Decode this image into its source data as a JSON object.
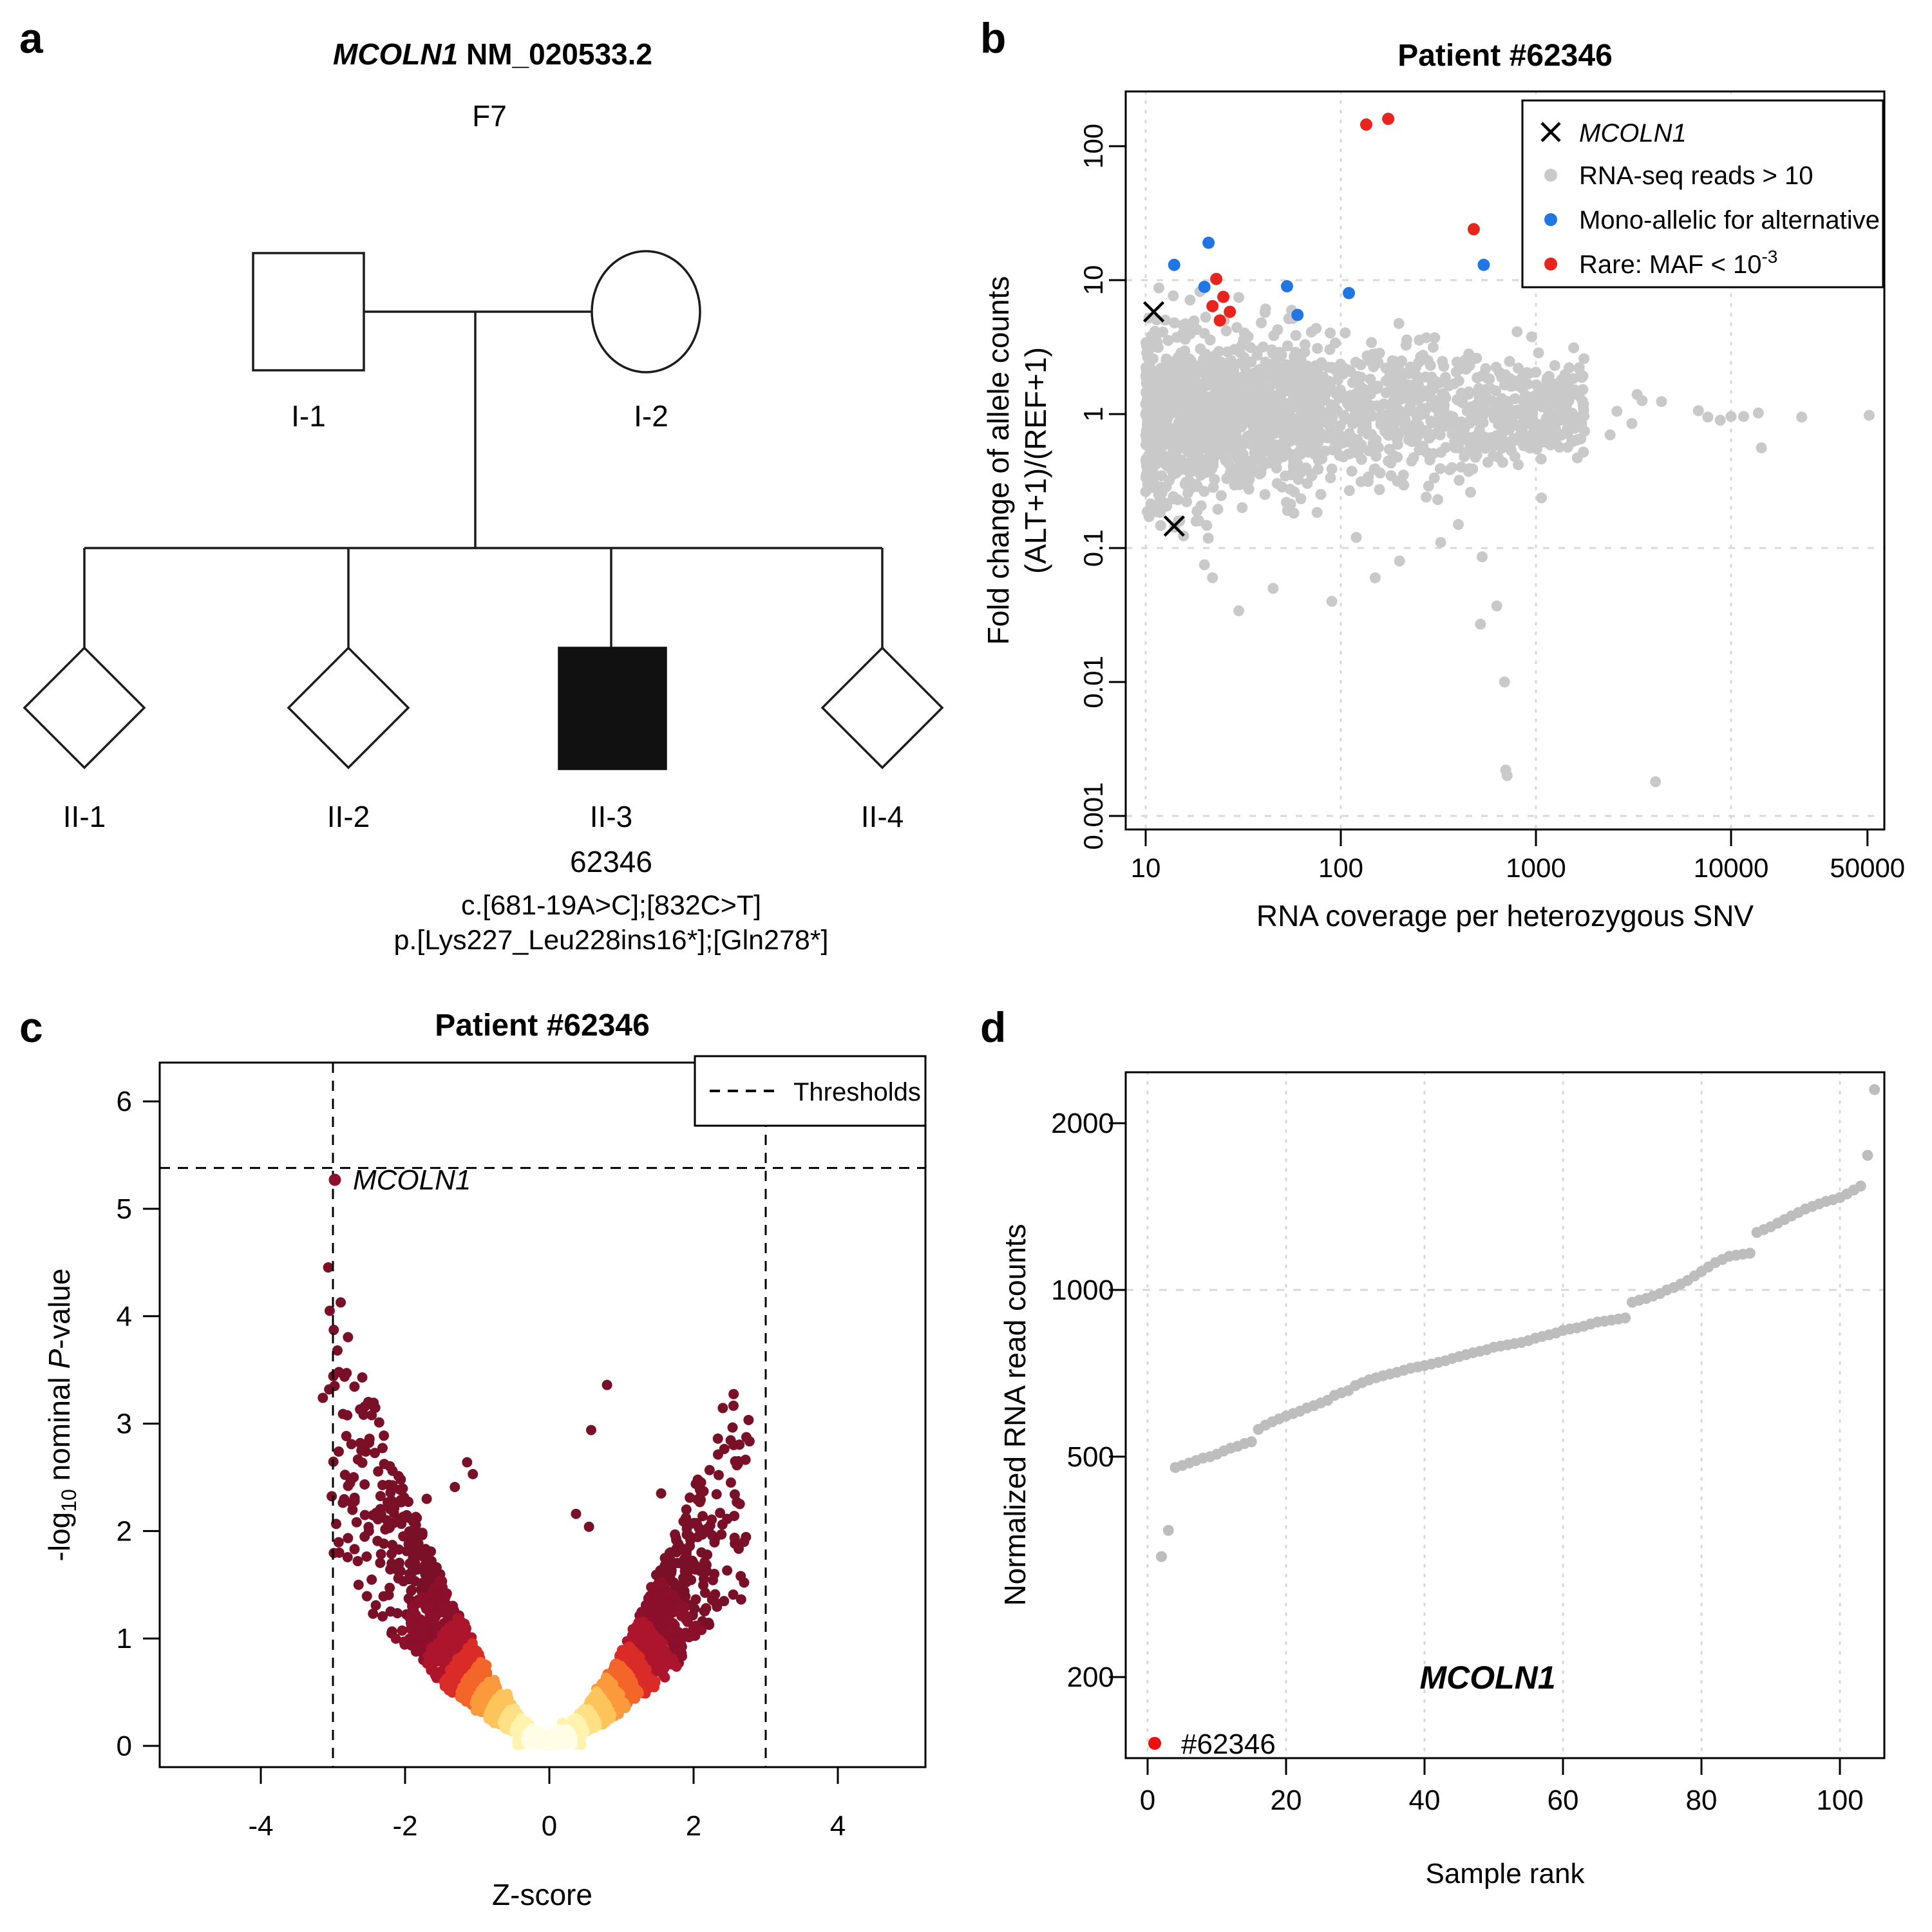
{
  "figure": {
    "panel_letters": {
      "a": "a",
      "b": "b",
      "c": "c",
      "d": "d"
    }
  },
  "colors": {
    "black": "#000000",
    "gray_points": "#c9c9c9",
    "gray_points_d": "#bdbdbd",
    "blue": "#2176e5",
    "red": "#e7251d",
    "red_highlight": "#f20d0d",
    "maroon": "#8c0f2c",
    "grid": "#d8d8d8",
    "volcano_palette": [
      "#fffde6",
      "#fff3ae",
      "#ffe084",
      "#fec45c",
      "#fb9a3c",
      "#f4652a",
      "#d92b27",
      "#ad152d",
      "#8c0f2c",
      "#7a1028"
    ]
  },
  "panel_a": {
    "title_gene": "MCOLN1",
    "title_transcript": " NM_020533.2",
    "family": "F7",
    "individuals": [
      {
        "id": "I-1"
      },
      {
        "id": "I-2"
      },
      {
        "id": "II-1"
      },
      {
        "id": "II-2"
      },
      {
        "id": "II-3",
        "sample": "62346",
        "cdna": "c.[681-19A>C];[832C>T]",
        "protein": "p.[Lys227_Leu228ins16*];[Gln278*]"
      },
      {
        "id": "II-4"
      }
    ]
  },
  "panel_b": {
    "title": "Patient #62346",
    "xlabel": "RNA coverage per heterozygous SNV",
    "ylabel_line1": "Fold change of allele counts",
    "ylabel_line2": "(ALT+1)/(REF+1)",
    "legend": [
      {
        "label": "MCOLN1"
      },
      {
        "label": "RNA-seq reads > 10"
      },
      {
        "label": "Mono-allelic for alternative"
      },
      {
        "label": "Rare: MAF < 10"
      }
    ],
    "maf_superscript": "-3"
  },
  "panel_c": {
    "title": "Patient #62346",
    "xlabel": "Z-score",
    "ylabel_p1": "-log",
    "ylabel_sub": "10",
    "ylabel_p2": " nominal ",
    "ylabel_p3": "P",
    "ylabel_p4": "-value",
    "legend_label": "Thresholds",
    "gene_label": "MCOLN1"
  },
  "panel_d": {
    "xlabel": "Sample rank",
    "ylabel": "Normalized RNA read counts",
    "gene_label": "MCOLN1",
    "highlight_label": "#62346"
  },
  "chart_data": [
    {
      "panel": "b",
      "type": "scatter",
      "title": "Patient #62346",
      "xlabel": "RNA coverage per heterozygous SNV",
      "ylabel": "Fold change of allele counts (ALT+1)/(REF+1)",
      "x_scale": "log",
      "y_scale": "log",
      "x_ticks": [
        10,
        100,
        1000,
        10000,
        50000
      ],
      "x_tick_labels": [
        "10",
        "100",
        "1000",
        "10000",
        "50000"
      ],
      "y_ticks": [
        100,
        10,
        1,
        0.1,
        0.01,
        0.001
      ],
      "y_tick_labels": [
        "100",
        "10",
        "1",
        "0.1",
        "0.01",
        "0.001"
      ],
      "grid_x": [
        10,
        100,
        1000,
        10000
      ],
      "grid_y": [
        10,
        0.1,
        0.001
      ],
      "xlim": [
        9,
        61000
      ],
      "ylim": [
        0.0006,
        290
      ],
      "mcoln1_x_markers": [
        {
          "x": 11,
          "y": 5.8
        },
        {
          "x": 14,
          "y": 0.146
        }
      ],
      "mono_allelic_blue": [
        [
          21,
          19
        ],
        [
          14,
          13
        ],
        [
          20,
          8.9
        ],
        [
          53,
          9
        ],
        [
          110,
          8
        ],
        [
          60,
          5.5
        ],
        [
          540,
          13
        ]
      ],
      "rare_red": [
        [
          135,
          145
        ],
        [
          175,
          160
        ],
        [
          23,
          10.2
        ],
        [
          25,
          7.5
        ],
        [
          22,
          6.4
        ],
        [
          27,
          5.8
        ],
        [
          24,
          5.0
        ],
        [
          480,
          24
        ]
      ],
      "gray_low_outliers": [
        [
          20,
          0.075
        ],
        [
          22,
          0.06
        ],
        [
          30,
          0.034
        ],
        [
          45,
          0.05
        ],
        [
          90,
          0.04
        ],
        [
          120,
          0.12
        ],
        [
          150,
          0.06
        ],
        [
          200,
          0.08
        ],
        [
          274,
          0.24
        ],
        [
          325,
          0.11
        ],
        [
          400,
          0.15
        ],
        [
          530,
          0.086
        ],
        [
          520,
          0.027
        ],
        [
          630,
          0.037
        ],
        [
          690,
          0.01
        ],
        [
          700,
          0.0022
        ],
        [
          712,
          0.002
        ],
        [
          4100,
          0.0018
        ]
      ],
      "gray_right_tail": [
        [
          1620,
          0.64
        ],
        [
          1750,
          0.52
        ],
        [
          2400,
          0.7
        ],
        [
          2600,
          1.05
        ],
        [
          3100,
          0.85
        ],
        [
          3300,
          1.4
        ],
        [
          3500,
          1.26
        ],
        [
          4400,
          1.24
        ],
        [
          6800,
          1.06
        ],
        [
          7600,
          0.95
        ],
        [
          8800,
          0.9
        ],
        [
          10000,
          0.96
        ],
        [
          11600,
          0.96
        ],
        [
          13800,
          1.02
        ],
        [
          14300,
          0.56
        ],
        [
          23000,
          0.95
        ],
        [
          51000,
          0.98
        ]
      ],
      "background_cloud": {
        "n": 1900,
        "seed": 42,
        "x_log_min": 1,
        "x_log_span": 2.25,
        "x_pow": 1.45,
        "y_sigma_base": 0.4,
        "y_sigma_slope": 0.068,
        "center_y": 1
      }
    },
    {
      "panel": "c",
      "type": "scatter",
      "title": "Patient #62346",
      "xlabel": "Z-score",
      "ylabel": "-log10 nominal P-value",
      "x_ticks": [
        -4,
        -2,
        0,
        2,
        4
      ],
      "y_ticks": [
        0,
        1,
        2,
        3,
        4,
        5,
        6
      ],
      "xlim": [
        -5.4,
        5.2
      ],
      "ylim": [
        -0.2,
        6.3
      ],
      "thresholds": {
        "z": [
          -3,
          3
        ],
        "p": 5.38
      },
      "mcoln1": {
        "z": -2.97,
        "p": 5.27,
        "label": "MCOLN1"
      },
      "notable_points": [
        [
          -3.14,
          3.24
        ],
        [
          0.8,
          3.36
        ],
        [
          0.58,
          2.94
        ],
        [
          2.62,
          2.65
        ],
        [
          -2.92,
          2.74
        ],
        [
          -2.79,
          2.42
        ],
        [
          -2.7,
          2.31
        ],
        [
          -2.06,
          2.48
        ],
        [
          -1.14,
          2.64
        ],
        [
          -1.06,
          2.53
        ],
        [
          -1.31,
          2.41
        ],
        [
          2.6,
          2.27
        ],
        [
          2.4,
          2.06
        ],
        [
          0.37,
          2.16
        ],
        [
          0.55,
          2.04
        ],
        [
          -1.7,
          2.3
        ],
        [
          1.9,
          2.2
        ],
        [
          2.7,
          1.9
        ],
        [
          -2.25,
          2.1
        ],
        [
          1.55,
          2.35
        ]
      ],
      "volcano_cloud": {
        "n": 4200,
        "seed": 7,
        "z_sigma": 1.02,
        "left_stretch": 1.1,
        "amp": 0.62,
        "exp": 1.5,
        "zmax": 2.78,
        "apex_extra": 260
      },
      "color_radii": [
        0.32,
        0.5,
        0.68,
        0.9,
        1.12,
        1.35,
        1.6,
        1.95,
        2.45
      ]
    },
    {
      "panel": "d",
      "type": "scatter",
      "xlabel": "Sample rank",
      "ylabel": "Normalized RNA read counts",
      "y_scale": "log",
      "x_ticks": [
        0,
        20,
        40,
        60,
        80,
        100
      ],
      "y_ticks": [
        200,
        500,
        1000,
        2000
      ],
      "y_tick_labels": [
        "200",
        "500",
        "1000",
        "2000"
      ],
      "grid_y": [
        1000
      ],
      "xlim": [
        -3,
        106
      ],
      "ylim": [
        140,
        2600
      ],
      "highlight": {
        "rank": 1,
        "value": 152,
        "label": "#62346"
      },
      "first_rank_gray": 2,
      "values": [
        330,
        368,
        478,
        482,
        487,
        492,
        497,
        500,
        505,
        512,
        518,
        522,
        528,
        532,
        560,
        570,
        578,
        585,
        592,
        598,
        604,
        612,
        618,
        625,
        632,
        645,
        652,
        658,
        672,
        680,
        688,
        694,
        700,
        705,
        710,
        716,
        722,
        726,
        730,
        735,
        740,
        745,
        752,
        758,
        764,
        770,
        775,
        780,
        788,
        792,
        796,
        800,
        804,
        810,
        818,
        824,
        830,
        836,
        845,
        850,
        854,
        860,
        868,
        875,
        878,
        882,
        886,
        890,
        950,
        958,
        965,
        975,
        985,
        1000,
        1010,
        1025,
        1040,
        1060,
        1080,
        1100,
        1120,
        1135,
        1150,
        1155,
        1160,
        1165,
        1270,
        1285,
        1300,
        1320,
        1340,
        1360,
        1380,
        1400,
        1415,
        1430,
        1445,
        1455,
        1468,
        1490,
        1515,
        1540,
        1750,
        2300
      ]
    }
  ]
}
